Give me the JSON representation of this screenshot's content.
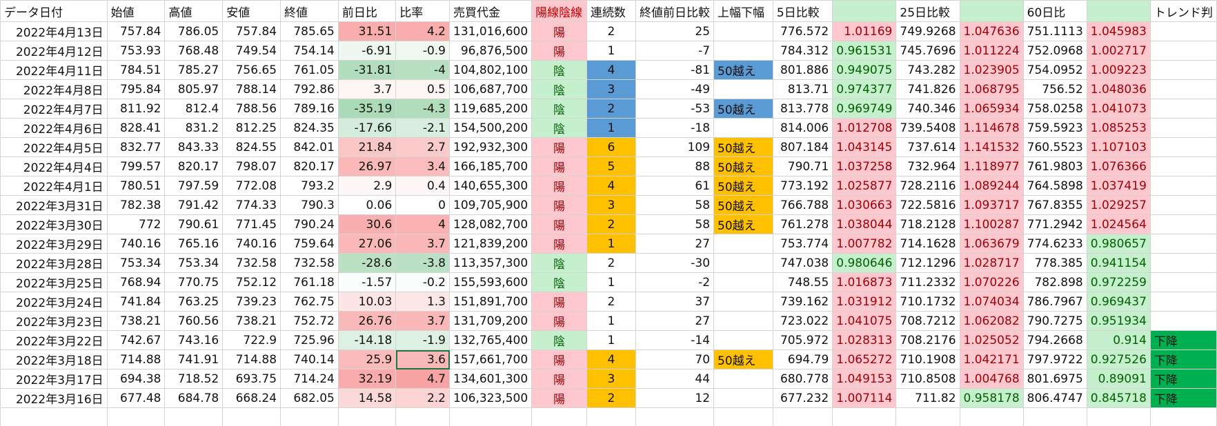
{
  "table": {
    "header": [
      "データ日付",
      "始値",
      "高値",
      "安値",
      "終値",
      "前日比",
      "比率",
      "売買代金",
      "陽線陰線",
      "連続数",
      "終値前日比較",
      "上幅下幅",
      "5日比較",
      null,
      "25日比較",
      null,
      "60日比",
      null,
      "トレンド判"
    ],
    "rows": [
      [
        "2022年4月13日",
        757.84,
        786.05,
        757.84,
        785.65,
        31.51,
        4.2,
        "131,016,600",
        "陽",
        2,
        25,
        null,
        776.572,
        1.01169,
        749.9268,
        1.047636,
        751.1113,
        1.045983,
        null
      ],
      [
        "2022年4月12日",
        753.93,
        768.48,
        749.54,
        754.14,
        -6.91,
        -0.9,
        "96,876,500",
        "陽",
        1,
        -7,
        null,
        784.312,
        0.961531,
        745.7696,
        1.011224,
        752.0968,
        1.002717,
        null
      ],
      [
        "2022年4月11日",
        784.51,
        785.27,
        756.65,
        761.05,
        -31.81,
        -4,
        "104,802,100",
        "陰",
        4,
        -81,
        "50越え",
        801.886,
        0.949075,
        743.282,
        1.023905,
        754.0952,
        1.009223,
        null
      ],
      [
        "2022年4月8日",
        795.84,
        805.97,
        788.14,
        792.86,
        3.7,
        0.5,
        "106,687,700",
        "陰",
        3,
        -49,
        null,
        813.71,
        0.974377,
        741.826,
        1.068795,
        756.52,
        1.048036,
        null
      ],
      [
        "2022年4月7日",
        811.92,
        812.4,
        788.56,
        789.16,
        -35.19,
        -4.3,
        "119,685,200",
        "陰",
        2,
        -53,
        "50越え",
        813.778,
        0.969749,
        740.346,
        1.065934,
        758.0258,
        1.041073,
        null
      ],
      [
        "2022年4月6日",
        828.41,
        831.2,
        812.25,
        824.35,
        -17.66,
        -2.1,
        "154,500,200",
        "陰",
        1,
        -18,
        null,
        814.006,
        1.012708,
        739.5408,
        1.114678,
        759.5923,
        1.085253,
        null
      ],
      [
        "2022年4月5日",
        832.77,
        843.33,
        824.55,
        842.01,
        21.84,
        2.7,
        "192,932,300",
        "陽",
        6,
        109,
        "50越え",
        807.184,
        1.043145,
        737.614,
        1.141532,
        760.5523,
        1.107103,
        null
      ],
      [
        "2022年4月4日",
        799.57,
        820.17,
        798.07,
        820.17,
        26.97,
        3.4,
        "166,185,700",
        "陽",
        5,
        88,
        "50越え",
        790.71,
        1.037258,
        732.964,
        1.118977,
        761.9803,
        1.076366,
        null
      ],
      [
        "2022年4月1日",
        780.51,
        797.59,
        772.08,
        793.2,
        2.9,
        0.4,
        "140,655,300",
        "陽",
        4,
        61,
        "50越え",
        773.192,
        1.025877,
        728.2116,
        1.089244,
        764.5898,
        1.037419,
        null
      ],
      [
        "2022年3月31日",
        782.38,
        791.42,
        774.33,
        790.3,
        0.06,
        0,
        "109,705,900",
        "陽",
        3,
        58,
        "50越え",
        766.788,
        1.030663,
        722.5816,
        1.093717,
        767.8355,
        1.029257,
        null
      ],
      [
        "2022年3月30日",
        772,
        790.61,
        771.45,
        790.24,
        30.6,
        4,
        "128,082,700",
        "陽",
        2,
        58,
        "50越え",
        761.278,
        1.038044,
        718.2128,
        1.100287,
        771.2942,
        1.024564,
        null
      ],
      [
        "2022年3月29日",
        740.16,
        765.16,
        740.16,
        759.64,
        27.06,
        3.7,
        "121,839,200",
        "陽",
        1,
        27,
        null,
        753.774,
        1.007782,
        714.1628,
        1.063679,
        774.6233,
        0.980657,
        null
      ],
      [
        "2022年3月28日",
        753.34,
        753.34,
        732.58,
        732.58,
        -28.6,
        -3.8,
        "113,357,300",
        "陰",
        2,
        -30,
        null,
        747.038,
        0.980646,
        712.1296,
        1.028717,
        778.385,
        0.941154,
        null
      ],
      [
        "2022年3月25日",
        768.94,
        770.75,
        752.12,
        761.18,
        -1.57,
        -0.2,
        "155,593,600",
        "陰",
        1,
        -2,
        null,
        748.55,
        1.016873,
        711.2332,
        1.070226,
        782.898,
        0.972259,
        null
      ],
      [
        "2022年3月24日",
        741.84,
        763.25,
        739.23,
        762.75,
        10.03,
        1.3,
        "151,891,700",
        "陽",
        2,
        37,
        null,
        739.162,
        1.031912,
        710.1732,
        1.074034,
        786.7967,
        0.969437,
        null
      ],
      [
        "2022年3月23日",
        738.21,
        760.56,
        738.21,
        752.72,
        26.76,
        3.7,
        "131,709,200",
        "陽",
        1,
        27,
        null,
        723.022,
        1.041075,
        708.7212,
        1.062082,
        790.7275,
        0.951934,
        null
      ],
      [
        "2022年3月22日",
        742.67,
        743.16,
        722.9,
        725.96,
        -14.18,
        -1.9,
        "132,765,400",
        "陰",
        1,
        -14,
        null,
        705.972,
        1.028313,
        708.2176,
        1.025052,
        794.2668,
        0.914,
        "下降"
      ],
      [
        "2022年3月18日",
        714.88,
        741.91,
        714.88,
        740.14,
        25.9,
        3.6,
        "157,661,700",
        "陽",
        4,
        70,
        "50越え",
        694.79,
        1.065272,
        710.1908,
        1.042171,
        797.9722,
        0.927526,
        "下降"
      ],
      [
        "2022年3月17日",
        694.38,
        718.52,
        693.75,
        714.24,
        32.19,
        4.7,
        "134,601,300",
        "陽",
        3,
        44,
        null,
        680.778,
        1.049153,
        710.8508,
        1.004768,
        801.6975,
        0.89091,
        "下降"
      ],
      [
        "2022年3月16日",
        677.48,
        684.78,
        668.24,
        682.05,
        14.58,
        2.2,
        "106,323,500",
        "陽",
        2,
        12,
        null,
        677.232,
        1.007114,
        711.82,
        0.958178,
        806.4747,
        0.845718,
        "下降"
      ]
    ],
    "streak_colors": [
      null,
      null,
      "#5b9bd5",
      "#5b9bd5",
      "#5b9bd5",
      "#5b9bd5",
      "#ffc000",
      "#ffc000",
      "#ffc000",
      "#ffc000",
      "#ffc000",
      "#ffc000",
      null,
      null,
      null,
      null,
      null,
      "#ffc000",
      "#ffc000",
      "#ffc000"
    ]
  }
}
